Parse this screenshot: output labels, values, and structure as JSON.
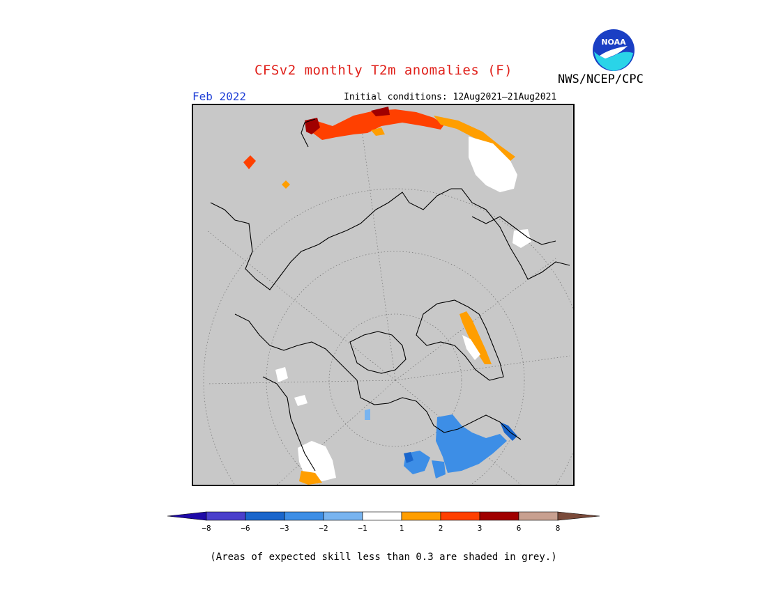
{
  "title": "CFSv2 monthly T2m anomalies (F)",
  "org": "NWS/NCEP/CPC",
  "logo_text": "NOAA",
  "month": "Feb 2022",
  "initial_conditions": "Initial conditions: 12Aug2021–21Aug2021",
  "footnote": "(Areas of expected skill less than 0.3 are shaded in grey.)",
  "colors": {
    "skill_grey": "#c8c8c8",
    "neg8": "#1f0aa8",
    "neg6": "#4a3fcc",
    "neg3": "#1a66cc",
    "neg2": "#3d8ee6",
    "neg1": "#78b4f0",
    "neutral": "#ffffff",
    "pos1": "#ff9e00",
    "pos2": "#ff4000",
    "pos3": "#a00000",
    "pos6": "#c8a090",
    "pos8": "#7a4a3a"
  },
  "colorbar": {
    "labels": [
      "−8",
      "−6",
      "−3",
      "−2",
      "−1",
      "1",
      "2",
      "3",
      "6",
      "8"
    ]
  }
}
